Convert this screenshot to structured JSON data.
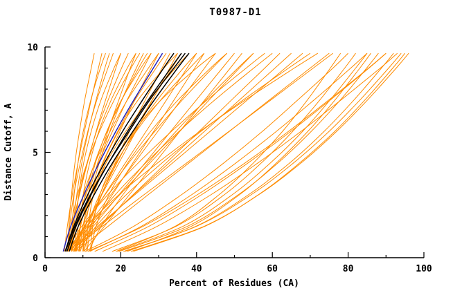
{
  "colors": {
    "orange": "#ff8c00",
    "blue": "#2222bb",
    "black": "#000000",
    "axis": "#000000"
  },
  "chart_data": {
    "type": "line",
    "title": "T0987-D1",
    "xlabel": "Percent of Residues (CA)",
    "ylabel": "Distance Cutoff, A",
    "xlim": [
      0,
      100
    ],
    "ylim": [
      0,
      10
    ],
    "x_ticks_major": [
      0,
      20,
      40,
      60,
      80,
      100
    ],
    "x_minor_step": 10,
    "y_ticks_major": [
      0,
      5,
      10
    ],
    "y_minor_step": 1,
    "grid": false,
    "legend": "none",
    "cutoffs": [
      0.3,
      1.5,
      3,
      4.5,
      6,
      7.5,
      9,
      9.7
    ],
    "series": {
      "orange": [
        [
          6,
          6.3,
          7,
          7.9,
          9.1,
          10.5,
          12.2,
          13
        ],
        [
          7,
          7.2,
          7.7,
          8.7,
          10.1,
          12.1,
          14.6,
          16
        ],
        [
          6,
          6.5,
          7.6,
          9.3,
          11.3,
          13.7,
          16.6,
          18
        ],
        [
          8,
          8.2,
          8.9,
          10.2,
          12.2,
          14.8,
          18.2,
          20
        ],
        [
          7,
          7.6,
          9,
          11.1,
          13.6,
          16.7,
          20.2,
          22
        ],
        [
          9,
          9.3,
          10.1,
          11.8,
          14.2,
          17.5,
          21.7,
          24
        ],
        [
          6.1,
          6.8,
          8.6,
          11.1,
          14.4,
          18.3,
          22.7,
          25
        ],
        [
          8.1,
          8.8,
          10.6,
          13.1,
          16.4,
          20.3,
          24.7,
          27
        ],
        [
          10,
          10.3,
          11.4,
          13.3,
          16.3,
          20.2,
          25.3,
          28
        ],
        [
          7.1,
          8,
          10.1,
          13.2,
          17.2,
          21.8,
          27.3,
          30
        ],
        [
          9.1,
          10,
          12.1,
          15.2,
          19.2,
          23.8,
          29.3,
          32
        ],
        [
          11,
          11.4,
          12.8,
          15.4,
          19.4,
          24.6,
          31.4,
          35
        ],
        [
          8.1,
          9.3,
          12.1,
          16.1,
          21.3,
          27.4,
          34.4,
          38
        ],
        [
          10.1,
          11.3,
          14.4,
          18.7,
          24.1,
          30.6,
          38.2,
          42
        ],
        [
          12,
          12.6,
          14.5,
          18.1,
          23.5,
          30.7,
          40,
          45
        ],
        [
          6.2,
          7.2,
          9.1,
          11.2,
          13.5,
          16,
          18.7,
          20
        ],
        [
          8.2,
          9.4,
          11.5,
          13.9,
          16.6,
          19.5,
          22.5,
          24
        ],
        [
          5.1,
          5.9,
          7.2,
          8.7,
          10.4,
          12.2,
          14.1,
          15
        ],
        [
          6.2,
          11.2,
          17.4,
          23.6,
          29.8,
          35.9,
          42.1,
          45
        ],
        [
          7.4,
          12.8,
          19.6,
          26.4,
          33.2,
          40,
          46.8,
          50
        ],
        [
          5.6,
          11.9,
          19.8,
          27.7,
          35.6,
          43.4,
          51.3,
          55
        ],
        [
          7.6,
          11.7,
          18.6,
          26.6,
          35.4,
          44.9,
          55.1,
          60
        ],
        [
          6.9,
          14.3,
          23.5,
          32.8,
          42.1,
          51.4,
          60.7,
          65
        ],
        [
          8.7,
          13.5,
          21.5,
          30.9,
          41.2,
          52.4,
          64.3,
          70
        ],
        [
          8.1,
          16.7,
          27.3,
          38,
          48.7,
          59.3,
          70,
          75
        ],
        [
          5.6,
          9.7,
          16.6,
          24.6,
          33.4,
          42.9,
          53.1,
          58
        ],
        [
          7.5,
          10.6,
          15.9,
          22.1,
          29,
          36.3,
          44.2,
          48
        ],
        [
          6,
          13.9,
          23.8,
          33.7,
          43.6,
          53.5,
          63.4,
          68
        ],
        [
          7.7,
          14.7,
          23.3,
          32,
          40.7,
          49.3,
          58,
          62
        ],
        [
          5.7,
          10.9,
          19.6,
          29.7,
          40.9,
          53,
          65.8,
          72
        ],
        [
          10.6,
          23.5,
          36.1,
          47.2,
          57.4,
          66.8,
          76,
          80
        ],
        [
          11.8,
          25.5,
          38.8,
          50.4,
          61.1,
          71.1,
          80.7,
          85
        ],
        [
          13.1,
          27.5,
          41.4,
          53.6,
          64.9,
          75.4,
          85.5,
          90
        ],
        [
          19.6,
          37.7,
          51.1,
          61.5,
          70.3,
          78,
          84.9,
          88
        ],
        [
          21.1,
          39.9,
          53.8,
          64.6,
          73.7,
          81.6,
          88.8,
          92
        ],
        [
          23.3,
          42.3,
          56.4,
          67.2,
          76.5,
          84.5,
          91.8,
          95
        ],
        [
          20.7,
          40.1,
          54.5,
          65.6,
          75,
          83.2,
          90.7,
          94
        ],
        [
          22.7,
          42.1,
          56.5,
          67.6,
          77,
          85.2,
          92.7,
          96
        ],
        [
          18.7,
          34.4,
          46,
          55,
          62.7,
          69.3,
          75.3,
          78
        ],
        [
          19.1,
          36.5,
          49.5,
          59.5,
          68,
          75.3,
          82,
          85
        ],
        [
          15.2,
          29.7,
          43.9,
          56.2,
          67.6,
          78.2,
          88.5,
          93
        ],
        [
          17.7,
          34.7,
          47.4,
          57.1,
          65.4,
          72.6,
          79.1,
          82
        ],
        [
          9.3,
          11.4,
          14.9,
          19,
          23.5,
          28.3,
          33.5,
          36
        ],
        [
          11.1,
          12.2,
          14.9,
          18.9,
          23.8,
          29.7,
          36.5,
          40
        ],
        [
          10.3,
          12,
          15,
          18.5,
          22.3,
          26.5,
          30.9,
          33
        ],
        [
          12.1,
          13.5,
          16.9,
          21.8,
          27.9,
          35.2,
          43.7,
          48
        ],
        [
          6.9,
          10.5,
          15,
          19.5,
          24,
          28.4,
          32.9,
          35
        ],
        [
          6.1,
          10.4,
          15.8,
          21.2,
          26.7,
          32.1,
          37.5,
          40
        ],
        [
          7,
          7.4,
          8.4,
          9.7,
          11.4,
          13.5,
          15.8,
          17
        ],
        [
          8.2,
          10,
          12.8,
          16.1,
          19.8,
          23.7,
          28,
          30
        ],
        [
          10,
          10.7,
          12.2,
          14.3,
          17.1,
          20.3,
          24.1,
          26
        ],
        [
          6.2,
          8,
          10.8,
          14.1,
          17.8,
          21.7,
          26,
          28
        ],
        [
          10.3,
          15.7,
          22.3,
          29,
          35.6,
          42.2,
          48.9,
          52
        ],
        [
          8.1,
          12.4,
          17.8,
          23.2,
          28.7,
          34.1,
          39.5,
          42
        ],
        [
          11.5,
          14.9,
          20.6,
          27.2,
          34.6,
          42.5,
          50.9,
          55
        ],
        [
          11.3,
          26,
          40.3,
          52.8,
          64.3,
          75,
          85.4,
          90
        ],
        [
          21.7,
          38.7,
          51.4,
          61.1,
          69.4,
          76.6,
          83.1,
          86
        ],
        [
          6.2,
          15.2,
          26.2,
          37.4,
          48.6,
          59.7,
          70.8,
          76
        ]
      ],
      "black": [
        [
          5.3,
          7.6,
          11.3,
          15.7,
          20.5,
          25.8,
          31.3,
          34
        ],
        [
          5.8,
          8.2,
          12.2,
          16.8,
          21.8,
          27.3,
          33.2,
          36
        ],
        [
          6.4,
          8.8,
          13,
          17.8,
          23.2,
          28.9,
          35,
          38
        ],
        [
          5.4,
          7.9,
          12,
          16.8,
          22.2,
          27.7,
          34,
          37
        ]
      ],
      "blue": [
        [
          4.8,
          6.8,
          10.3,
          14.3,
          18.7,
          23.5,
          28.6,
          31
        ]
      ]
    }
  }
}
